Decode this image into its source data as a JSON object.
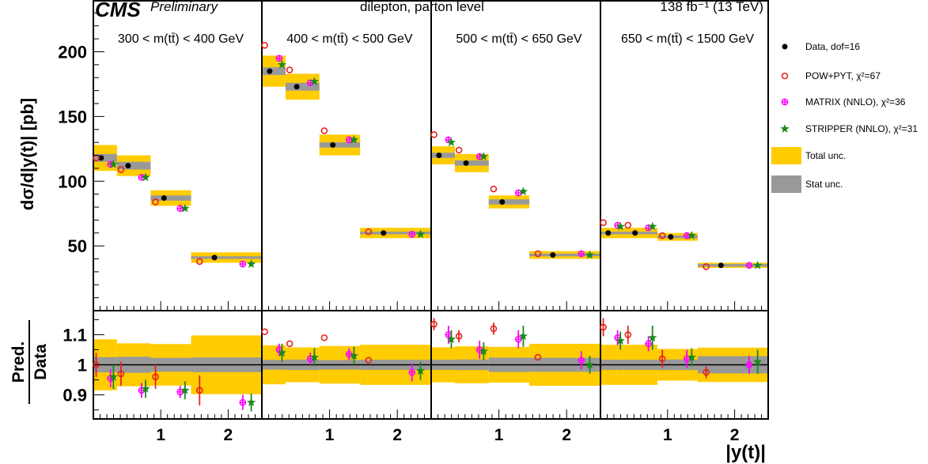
{
  "header": {
    "logo": "CMS",
    "text_left": "Preliminary",
    "text_mid": "dilepton, parton level",
    "text_right": "138 fb⁻¹ (13 TeV)"
  },
  "ylabel": "dσ/d|y(t)| [pb]",
  "ratio_ylabel_top": "Pred.",
  "ratio_ylabel_bottom": "Data",
  "xlabel": "|y(t)|",
  "legend": {
    "items": [
      {
        "key": "data",
        "label": "Data, dof=16",
        "color": "#000000"
      },
      {
        "key": "pow",
        "label": "POW+PYT, χ²=67",
        "color": "#e8241b"
      },
      {
        "key": "matrix",
        "label": "MATRIX (NNLO), χ²=36",
        "color": "#ff00ff"
      },
      {
        "key": "stripper",
        "label": "STRIPPER (NNLO), χ²=31",
        "color": "#1a8a1a"
      },
      {
        "key": "total",
        "label": "Total unc.",
        "color": "#ffcc00"
      },
      {
        "key": "stat",
        "label": "Stat unc.",
        "color": "#999999"
      }
    ]
  },
  "chart_data": {
    "type": "scatter",
    "main": {
      "ylim": [
        0,
        240
      ],
      "yticks": [
        50,
        100,
        150,
        200
      ],
      "ytick_labels": [
        "50",
        "100",
        "150",
        "200"
      ]
    },
    "ratio": {
      "ylim": [
        0.82,
        1.18
      ],
      "yticks": [
        0.9,
        1.0,
        1.1
      ],
      "ytick_labels": [
        "0.9",
        "1",
        "1.1"
      ]
    },
    "xlim": [
      0,
      2.5
    ],
    "xticks": [
      1,
      2
    ],
    "xtick_labels": [
      "1",
      "2"
    ],
    "colors": {
      "data": "#000000",
      "pow": "#e8241b",
      "matrix": "#ff00ff",
      "stripper": "#1a8a1a",
      "total": "#ffcc00",
      "stat": "#999999"
    },
    "panels": [
      {
        "label": "300 < m(tt̄) < 400 GeV",
        "bins": [
          {
            "lo": 0.0,
            "hi": 0.35,
            "data": 118,
            "total": 10,
            "stat": 3,
            "pow": 118,
            "matrix": 113,
            "stripper": 113,
            "r_pow": 1.0,
            "r_pow_err": 0.04,
            "r_matrix": 0.955,
            "r_matrix_err": 0.03,
            "r_stripper": 0.96,
            "r_stripper_err": 0.04
          },
          {
            "lo": 0.35,
            "hi": 0.85,
            "data": 112,
            "total": 8,
            "stat": 3,
            "pow": 109,
            "matrix": 103,
            "stripper": 103,
            "r_pow": 0.97,
            "r_pow_err": 0.04,
            "r_matrix": 0.915,
            "r_matrix_err": 0.025,
            "r_stripper": 0.92,
            "r_stripper_err": 0.03
          },
          {
            "lo": 0.85,
            "hi": 1.45,
            "data": 87,
            "total": 6,
            "stat": 2,
            "pow": 84,
            "matrix": 79,
            "stripper": 79,
            "r_pow": 0.96,
            "r_pow_err": 0.04,
            "r_matrix": 0.91,
            "r_matrix_err": 0.02,
            "r_stripper": 0.915,
            "r_stripper_err": 0.03
          },
          {
            "lo": 1.45,
            "hi": 2.5,
            "data": 41,
            "total": 4,
            "stat": 1,
            "pow": 38,
            "matrix": 36,
            "stripper": 36,
            "r_pow": 0.915,
            "r_pow_err": 0.05,
            "r_matrix": 0.875,
            "r_matrix_err": 0.025,
            "r_stripper": 0.875,
            "r_stripper_err": 0.03
          }
        ]
      },
      {
        "label": "400 < m(tt̄) < 500 GeV",
        "bins": [
          {
            "lo": 0.0,
            "hi": 0.35,
            "data": 185,
            "total": 12,
            "stat": 3,
            "pow": 205,
            "matrix": 195,
            "stripper": 190,
            "r_pow": 1.11,
            "r_pow_err": 0.0,
            "r_matrix": 1.05,
            "r_matrix_err": 0.02,
            "r_stripper": 1.04,
            "r_stripper_err": 0.03
          },
          {
            "lo": 0.35,
            "hi": 0.85,
            "data": 173,
            "total": 10,
            "stat": 3,
            "pow": 186,
            "matrix": 176,
            "stripper": 177,
            "r_pow": 1.07,
            "r_pow_err": 0.0,
            "r_matrix": 1.02,
            "r_matrix_err": 0.02,
            "r_stripper": 1.025,
            "r_stripper_err": 0.03
          },
          {
            "lo": 0.85,
            "hi": 1.45,
            "data": 128,
            "total": 8,
            "stat": 2,
            "pow": 139,
            "matrix": 132,
            "stripper": 132,
            "r_pow": 1.09,
            "r_pow_err": 0.0,
            "r_matrix": 1.035,
            "r_matrix_err": 0.02,
            "r_stripper": 1.03,
            "r_stripper_err": 0.03
          },
          {
            "lo": 1.45,
            "hi": 2.5,
            "data": 60,
            "total": 4,
            "stat": 1,
            "pow": 61,
            "matrix": 59,
            "stripper": 59,
            "r_pow": 1.015,
            "r_pow_err": 0.0,
            "r_matrix": 0.975,
            "r_matrix_err": 0.03,
            "r_stripper": 0.98,
            "r_stripper_err": 0.03
          }
        ]
      },
      {
        "label": "500 < m(tt̄) < 650 GeV",
        "bins": [
          {
            "lo": 0.0,
            "hi": 0.35,
            "data": 120,
            "total": 7,
            "stat": 2,
            "pow": 136,
            "matrix": 132,
            "stripper": 130,
            "r_pow": 1.135,
            "r_pow_err": 0.02,
            "r_matrix": 1.1,
            "r_matrix_err": 0.03,
            "r_stripper": 1.085,
            "r_stripper_err": 0.03
          },
          {
            "lo": 0.35,
            "hi": 0.85,
            "data": 114,
            "total": 7,
            "stat": 2,
            "pow": 124,
            "matrix": 119,
            "stripper": 119,
            "r_pow": 1.095,
            "r_pow_err": 0.02,
            "r_matrix": 1.05,
            "r_matrix_err": 0.03,
            "r_stripper": 1.045,
            "r_stripper_err": 0.03
          },
          {
            "lo": 0.85,
            "hi": 1.45,
            "data": 84,
            "total": 5,
            "stat": 2,
            "pow": 94,
            "matrix": 91,
            "stripper": 92,
            "r_pow": 1.12,
            "r_pow_err": 0.02,
            "r_matrix": 1.085,
            "r_matrix_err": 0.03,
            "r_stripper": 1.095,
            "r_stripper_err": 0.035
          },
          {
            "lo": 1.45,
            "hi": 2.5,
            "data": 43,
            "total": 3,
            "stat": 1,
            "pow": 44,
            "matrix": 44,
            "stripper": 43,
            "r_pow": 1.025,
            "r_pow_err": 0.0,
            "r_matrix": 1.015,
            "r_matrix_err": 0.03,
            "r_stripper": 1.0,
            "r_stripper_err": 0.03
          }
        ]
      },
      {
        "label": "650 < m(tt̄) < 1500 GeV",
        "bins": [
          {
            "lo": 0.0,
            "hi": 0.35,
            "data": 60,
            "total": 4,
            "stat": 1,
            "pow": 68,
            "matrix": 66,
            "stripper": 65,
            "r_pow": 1.125,
            "r_pow_err": 0.03,
            "r_matrix": 1.09,
            "r_matrix_err": 0.025,
            "r_stripper": 1.08,
            "r_stripper_err": 0.03
          },
          {
            "lo": 0.35,
            "hi": 0.85,
            "data": 60,
            "total": 4,
            "stat": 1,
            "pow": 66,
            "matrix": 64,
            "stripper": 65,
            "r_pow": 1.1,
            "r_pow_err": 0.03,
            "r_matrix": 1.07,
            "r_matrix_err": 0.025,
            "r_stripper": 1.09,
            "r_stripper_err": 0.04
          },
          {
            "lo": 0.85,
            "hi": 1.45,
            "data": 57,
            "total": 3,
            "stat": 1,
            "pow": 58,
            "matrix": 58,
            "stripper": 58,
            "r_pow": 1.02,
            "r_pow_err": 0.03,
            "r_matrix": 1.02,
            "r_matrix_err": 0.03,
            "r_stripper": 1.025,
            "r_stripper_err": 0.03
          },
          {
            "lo": 1.45,
            "hi": 2.5,
            "data": 35,
            "total": 2,
            "stat": 1,
            "pow": 34,
            "matrix": 35,
            "stripper": 35,
            "r_pow": 0.975,
            "r_pow_err": 0.02,
            "r_matrix": 1.0,
            "r_matrix_err": 0.03,
            "r_stripper": 1.01,
            "r_stripper_err": 0.04
          }
        ]
      }
    ]
  }
}
